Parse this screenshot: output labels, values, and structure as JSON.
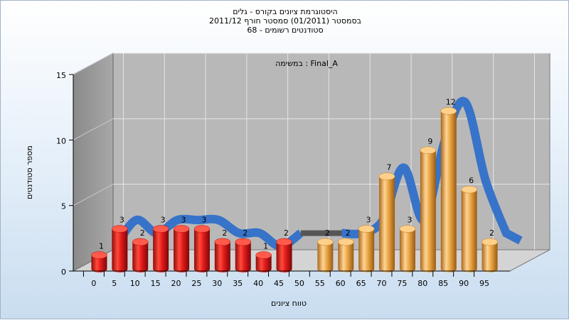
{
  "chart_data": {
    "type": "bar",
    "title_lines": [
      "היסטוגרמת ציונים בקורס - גלים",
      "בסמסטר  (01/2011)  סמסטר חורף 2011/12",
      "סטודנטים רשומים - 68"
    ],
    "inner_label": "במשימה : Final_A",
    "xlabel": "טווח ציונים",
    "ylabel": "מספר סטודנטים",
    "categories": [
      "0",
      "5",
      "10",
      "15",
      "20",
      "25",
      "30",
      "35",
      "40",
      "45",
      "50",
      "55",
      "60",
      "65",
      "70",
      "75",
      "80",
      "85",
      "90",
      "95"
    ],
    "values": [
      1,
      3,
      2,
      3,
      3,
      3,
      2,
      2,
      1,
      2,
      0,
      2,
      2,
      3,
      7,
      3,
      9,
      12,
      6,
      2
    ],
    "fail_threshold": 55,
    "ylim": [
      0,
      15
    ],
    "yticks": [
      0,
      5,
      10,
      15
    ],
    "grid": true,
    "colors": {
      "fail": "#e0191b",
      "pass": "#e9a645",
      "trend": "#2f6fc9",
      "trend_gap": "#555555",
      "wall": "#9b9b9b",
      "back": "#b8b8b8",
      "floor": "#d4d4d4"
    }
  }
}
